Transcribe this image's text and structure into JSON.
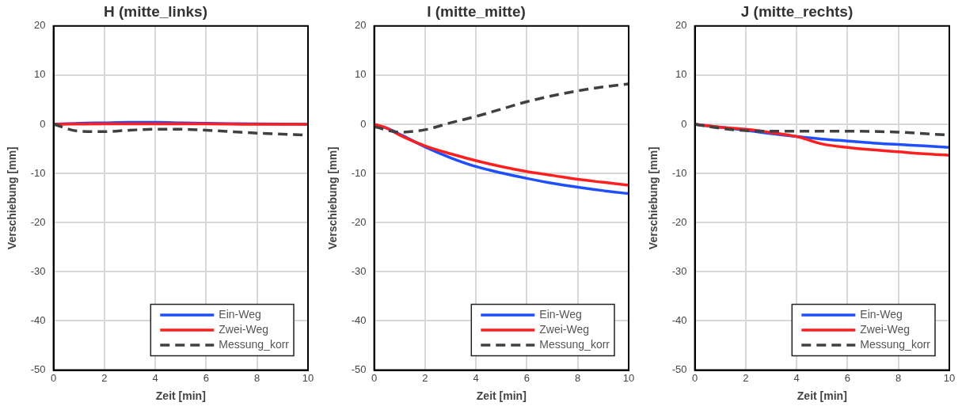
{
  "chart_data": [
    {
      "type": "line",
      "title": "H (mitte_links)",
      "xlabel": "Zeit [min]",
      "ylabel": "Verschiebung [mm]",
      "xlim": [
        0,
        10
      ],
      "ylim": [
        -50,
        20
      ],
      "xticks": [
        0,
        2,
        4,
        6,
        8,
        10
      ],
      "yticks": [
        -50,
        -40,
        -30,
        -20,
        -10,
        0,
        10,
        20
      ],
      "grid": true,
      "legend": "bottom right",
      "marker": "none",
      "series": [
        {
          "name": "Ein-Weg",
          "color": "#1f4fff",
          "x": [
            0,
            1,
            2,
            3,
            4,
            5,
            6,
            8,
            10
          ],
          "values": [
            0,
            0.2,
            0.3,
            0.4,
            0.4,
            0.3,
            0.2,
            0.1,
            0
          ]
        },
        {
          "name": "Zwei-Weg",
          "color": "#ff1f1f",
          "x": [
            0,
            2,
            4,
            6,
            8,
            10
          ],
          "values": [
            0,
            0.1,
            0.1,
            0.1,
            0,
            0
          ]
        },
        {
          "name": "Messung_korr",
          "color": "#404040",
          "line_style": "dashed",
          "x": [
            0,
            1,
            2,
            3,
            4,
            5,
            6,
            7,
            8,
            9,
            10
          ],
          "values": [
            0,
            -1.4,
            -1.5,
            -1.2,
            -1,
            -1,
            -1.2,
            -1.5,
            -1.8,
            -2,
            -2.2
          ]
        }
      ]
    },
    {
      "type": "line",
      "title": "I (mitte_mitte)",
      "xlabel": "Zeit [min]",
      "ylabel": "Verschiebung [mm]",
      "xlim": [
        0,
        10
      ],
      "ylim": [
        -50,
        20
      ],
      "xticks": [
        0,
        2,
        4,
        6,
        8,
        10
      ],
      "yticks": [
        -50,
        -40,
        -30,
        -20,
        -10,
        0,
        10,
        20
      ],
      "grid": true,
      "legend": "bottom right",
      "marker": "none",
      "series": [
        {
          "name": "Ein-Weg",
          "color": "#1f4fff",
          "x": [
            0,
            0.5,
            1,
            2,
            3,
            4,
            5,
            6,
            7,
            8,
            9,
            10
          ],
          "values": [
            0,
            -0.8,
            -2,
            -4.6,
            -6.8,
            -8.6,
            -9.9,
            -11,
            -12,
            -12.8,
            -13.5,
            -14.1
          ]
        },
        {
          "name": "Zwei-Weg",
          "color": "#ff1f1f",
          "x": [
            0,
            0.5,
            1,
            2,
            3,
            4,
            5,
            6,
            7,
            8,
            9,
            10
          ],
          "values": [
            0,
            -0.8,
            -2.2,
            -4.4,
            -6,
            -7.4,
            -8.6,
            -9.6,
            -10.4,
            -11.2,
            -11.8,
            -12.4
          ]
        },
        {
          "name": "Messung_korr",
          "color": "#404040",
          "line_style": "dashed",
          "x": [
            0,
            1,
            2,
            3,
            4,
            5,
            6,
            7,
            8,
            9,
            10
          ],
          "values": [
            -0.5,
            -1.6,
            -1.1,
            0.3,
            1.6,
            3.1,
            4.6,
            5.8,
            6.8,
            7.6,
            8.2
          ]
        }
      ]
    },
    {
      "type": "line",
      "title": "J (mitte_rechts)",
      "xlabel": "Zeit [min]",
      "ylabel": "Verschiebung [mm]",
      "xlim": [
        0,
        10
      ],
      "ylim": [
        -50,
        20
      ],
      "xticks": [
        0,
        2,
        4,
        6,
        8,
        10
      ],
      "yticks": [
        -50,
        -40,
        -30,
        -20,
        -10,
        0,
        10,
        20
      ],
      "grid": true,
      "legend": "bottom right",
      "marker": "none",
      "series": [
        {
          "name": "Ein-Weg",
          "color": "#1f4fff",
          "x": [
            0,
            1,
            2,
            3,
            4,
            5,
            6,
            7,
            8,
            9,
            10
          ],
          "values": [
            0,
            -0.6,
            -1.2,
            -1.9,
            -2.5,
            -3,
            -3.4,
            -3.8,
            -4.1,
            -4.4,
            -4.7
          ]
        },
        {
          "name": "Zwei-Weg",
          "color": "#ff1f1f",
          "x": [
            0,
            1,
            2,
            3,
            4,
            5,
            6,
            7,
            8,
            9,
            10
          ],
          "values": [
            0,
            -0.6,
            -1,
            -1.7,
            -2.5,
            -4,
            -4.7,
            -5.2,
            -5.6,
            -6,
            -6.3
          ]
        },
        {
          "name": "Messung_korr",
          "color": "#404040",
          "line_style": "dashed",
          "x": [
            0,
            1,
            2,
            3,
            4,
            6,
            8,
            9,
            10
          ],
          "values": [
            0,
            -0.8,
            -1.3,
            -1.4,
            -1.4,
            -1.4,
            -1.6,
            -1.9,
            -2.2
          ]
        }
      ]
    }
  ]
}
